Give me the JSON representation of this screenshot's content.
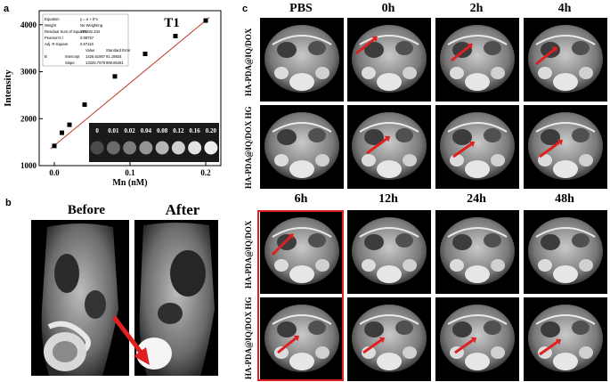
{
  "panel_a": {
    "letter": "a",
    "chart_data": {
      "type": "scatter",
      "title": "T1",
      "xlabel": "Mn (nM)",
      "ylabel": "Intensity",
      "xlim": [
        -0.02,
        0.22
      ],
      "ylim": [
        1000,
        4300
      ],
      "x_ticks": [
        "0.0",
        "0.1",
        "0.2"
      ],
      "y_ticks": [
        "1000",
        "2000",
        "3000",
        "4000"
      ],
      "series": [
        {
          "x": [
            0,
            0.01,
            0.02,
            0.04,
            0.08,
            0.12,
            0.16,
            0.2
          ],
          "y": [
            1420,
            1700,
            1870,
            2300,
            2900,
            3380,
            3760,
            4090
          ]
        }
      ],
      "fit_line": {
        "intercept": 1426.6,
        "slope": 13325.8
      },
      "fit_table": {
        "rows": [
          [
            "Equation",
            "y = a + b*x"
          ],
          [
            "Weight",
            "No Weighting"
          ],
          [
            "Residual Sum of Squares",
            "170282.334"
          ],
          [
            "Pearson's r",
            "0.98757"
          ],
          [
            "Adj. R-Square",
            "0.97116"
          ]
        ],
        "coef_header": [
          "",
          "",
          "Value",
          "Standard Error"
        ],
        "coef_rows": [
          [
            "B",
            "Intercept",
            "1426.61967",
            "91.19834"
          ],
          [
            "",
            "Slope",
            "13325.7978",
            "869.86481"
          ]
        ]
      },
      "phantom_labels": [
        "0",
        "0.01",
        "0.02",
        "0.04",
        "0.08",
        "0.12",
        "0.16",
        "0.20"
      ],
      "phantom_gray": [
        "#4a4a4a",
        "#6a6a6a",
        "#7c7c7c",
        "#959595",
        "#b5b5b5",
        "#cfcfcf",
        "#e2e2e2",
        "#efefef"
      ],
      "colors": {
        "points": "#000000",
        "line": "#c0392b"
      }
    }
  },
  "panel_b": {
    "letter": "b",
    "before_label": "Before",
    "after_label": "After"
  },
  "panel_c": {
    "letter": "c",
    "top_headers": [
      "PBS",
      "0h",
      "2h",
      "4h"
    ],
    "bottom_headers": [
      "6h",
      "12h",
      "24h",
      "48h"
    ],
    "row_labels": [
      "HA-PDA@IQ/DOX",
      "HA-PDA@IQ/DOX HG"
    ],
    "arrow_color": "#e02020"
  }
}
